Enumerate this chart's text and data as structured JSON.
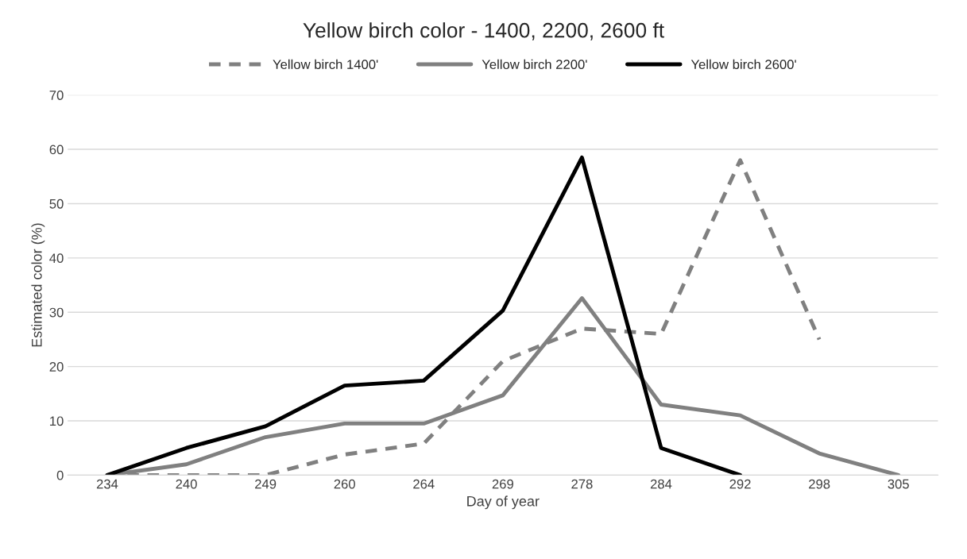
{
  "chart_data": {
    "type": "line",
    "title": "Yellow birch color - 1400, 2200, 2600 ft",
    "xlabel": "Day of year",
    "ylabel": "Estimated color (%)",
    "categories": [
      "234",
      "240",
      "249",
      "260",
      "264",
      "269",
      "278",
      "284",
      "292",
      "298",
      "305"
    ],
    "series": [
      {
        "name": "Yellow birch 1400'",
        "color": "#808080",
        "line_style": "dashed",
        "values": [
          0,
          0,
          0,
          3.8,
          5.8,
          21,
          27,
          26,
          58,
          25,
          null
        ]
      },
      {
        "name": "Yellow birch 2200'",
        "color": "#808080",
        "line_style": "solid",
        "values": [
          0,
          2,
          7,
          9.5,
          9.5,
          14.7,
          32.6,
          13,
          11,
          4,
          0
        ]
      },
      {
        "name": "Yellow birch 2600'",
        "color": "#000000",
        "line_style": "solid",
        "values": [
          0,
          5,
          9,
          16.5,
          17.4,
          30.3,
          58.5,
          5,
          0,
          null,
          null
        ]
      }
    ],
    "ylim": [
      0,
      70
    ],
    "yticks": [
      0,
      10,
      20,
      30,
      40,
      50,
      60,
      70
    ],
    "grid": "y",
    "legend": "top",
    "marker": "none"
  }
}
